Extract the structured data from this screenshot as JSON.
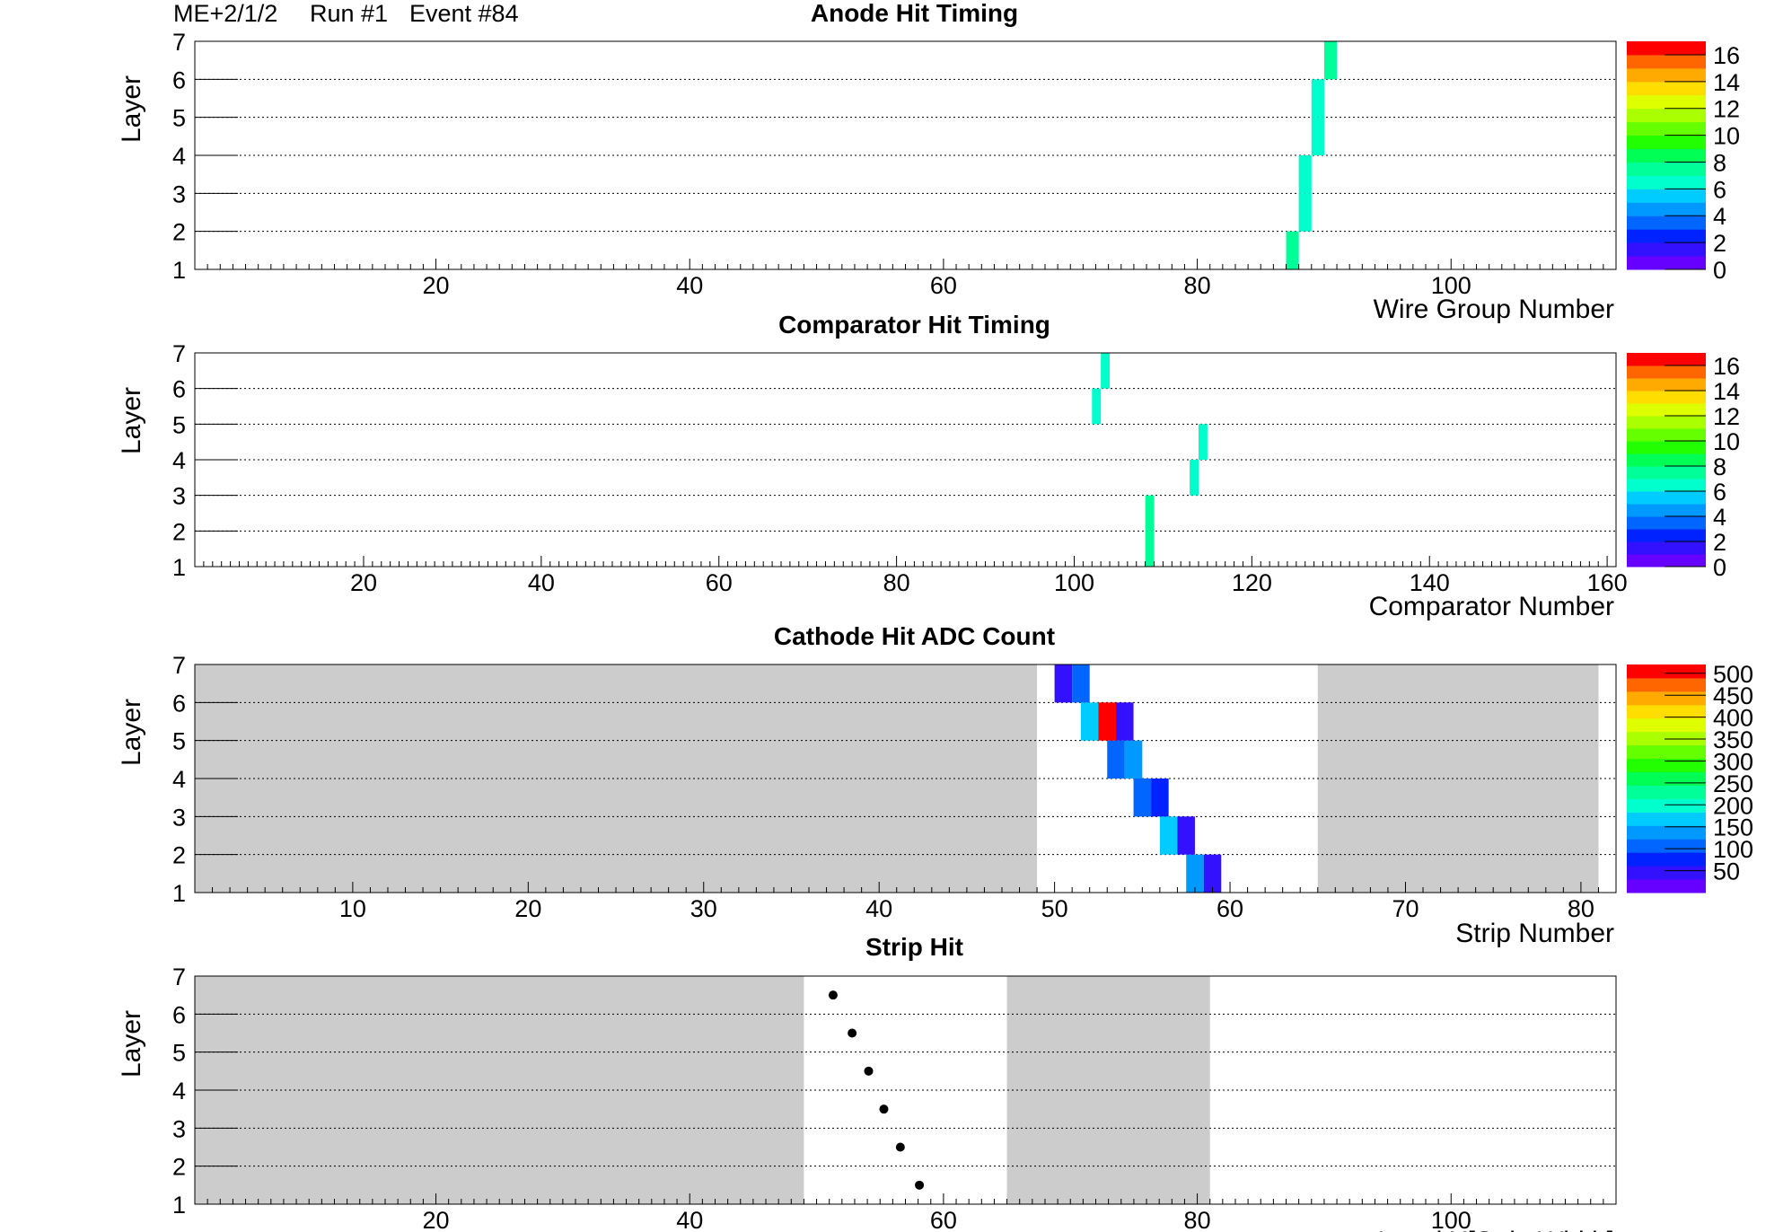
{
  "header": {
    "detector": "ME+2/1/2",
    "run": "Run #1",
    "event": "Event #84"
  },
  "colors": {
    "palette": [
      "#6600ff",
      "#3311ff",
      "#0022ff",
      "#0066ff",
      "#0099ff",
      "#00ccff",
      "#00ffcc",
      "#00ff99",
      "#00ff55",
      "#22ff00",
      "#66ff00",
      "#aaff00",
      "#ddff00",
      "#ffdd00",
      "#ffaa00",
      "#ff6600",
      "#ff0000"
    ],
    "inactive_region": "#cccccc",
    "grid": "#000000"
  },
  "chart_data": [
    {
      "type": "heatmap",
      "title": "Anode Hit Timing",
      "xlabel": "Wire Group Number",
      "ylabel": "Layer",
      "xlim": [
        1,
        113
      ],
      "ylim": [
        1,
        7
      ],
      "x_ticks": [
        20,
        40,
        60,
        80,
        100
      ],
      "y_ticks": [
        1,
        2,
        3,
        4,
        5,
        6,
        7
      ],
      "colorbar": {
        "min": 0,
        "max": 17,
        "ticks": [
          0,
          2,
          4,
          6,
          8,
          10,
          12,
          14,
          16
        ]
      },
      "cells": [
        {
          "layer": 1,
          "x0": 87,
          "x1": 88,
          "value": 7
        },
        {
          "layer": 2,
          "x0": 88,
          "x1": 89,
          "value": 6
        },
        {
          "layer": 3,
          "x0": 88,
          "x1": 89,
          "value": 6
        },
        {
          "layer": 4,
          "x0": 89,
          "x1": 90,
          "value": 6
        },
        {
          "layer": 5,
          "x0": 89,
          "x1": 90,
          "value": 6
        },
        {
          "layer": 6,
          "x0": 90,
          "x1": 91,
          "value": 7
        }
      ]
    },
    {
      "type": "heatmap",
      "title": "Comparator Hit Timing",
      "xlabel": "Comparator Number",
      "ylabel": "Layer",
      "xlim": [
        1,
        161
      ],
      "ylim": [
        1,
        7
      ],
      "x_ticks": [
        20,
        40,
        60,
        80,
        100,
        120,
        140,
        160
      ],
      "y_ticks": [
        1,
        2,
        3,
        4,
        5,
        6,
        7
      ],
      "colorbar": {
        "min": 0,
        "max": 17,
        "ticks": [
          0,
          2,
          4,
          6,
          8,
          10,
          12,
          14,
          16
        ]
      },
      "cells": [
        {
          "layer": 1,
          "x0": 108,
          "x1": 109,
          "value": 7
        },
        {
          "layer": 2,
          "x0": 108,
          "x1": 109,
          "value": 7
        },
        {
          "layer": 3,
          "x0": 113,
          "x1": 114,
          "value": 6
        },
        {
          "layer": 4,
          "x0": 114,
          "x1": 115,
          "value": 6
        },
        {
          "layer": 5,
          "x0": 102,
          "x1": 103,
          "value": 6
        },
        {
          "layer": 6,
          "x0": 103,
          "x1": 104,
          "value": 6
        }
      ]
    },
    {
      "type": "heatmap",
      "title": "Cathode Hit ADC Count",
      "xlabel": "Strip Number",
      "ylabel": "Layer",
      "xlim": [
        1,
        82
      ],
      "ylim": [
        1,
        7
      ],
      "x_ticks": [
        10,
        20,
        30,
        40,
        50,
        60,
        70,
        80
      ],
      "y_ticks": [
        1,
        2,
        3,
        4,
        5,
        6,
        7
      ],
      "inactive_ranges": [
        [
          1,
          49
        ],
        [
          65,
          81
        ]
      ],
      "colorbar": {
        "min": 0,
        "max": 520,
        "ticks": [
          50,
          100,
          150,
          200,
          250,
          300,
          350,
          400,
          450,
          500
        ]
      },
      "cells": [
        {
          "layer": 1,
          "x0": 57.5,
          "x1": 58.5,
          "value": 140
        },
        {
          "layer": 1,
          "x0": 58.5,
          "x1": 59.5,
          "value": 40
        },
        {
          "layer": 2,
          "x0": 56,
          "x1": 57,
          "value": 160
        },
        {
          "layer": 2,
          "x0": 57,
          "x1": 58,
          "value": 60
        },
        {
          "layer": 3,
          "x0": 54.5,
          "x1": 55.5,
          "value": 100
        },
        {
          "layer": 3,
          "x0": 55.5,
          "x1": 56.5,
          "value": 70
        },
        {
          "layer": 4,
          "x0": 53,
          "x1": 54,
          "value": 100
        },
        {
          "layer": 4,
          "x0": 54,
          "x1": 55,
          "value": 130
        },
        {
          "layer": 5,
          "x0": 51.5,
          "x1": 52.5,
          "value": 170
        },
        {
          "layer": 5,
          "x0": 52.5,
          "x1": 53.5,
          "value": 510
        },
        {
          "layer": 5,
          "x0": 53.5,
          "x1": 54.5,
          "value": 40
        },
        {
          "layer": 6,
          "x0": 50,
          "x1": 51,
          "value": 40
        },
        {
          "layer": 6,
          "x0": 51,
          "x1": 52,
          "value": 110
        }
      ]
    },
    {
      "type": "scatter",
      "title": "Strip Hit",
      "xlabel": "Local X[Strip Width]",
      "ylabel": "Layer",
      "xlim": [
        1,
        113
      ],
      "ylim": [
        1,
        7
      ],
      "x_ticks": [
        20,
        40,
        60,
        80,
        100
      ],
      "y_ticks": [
        1,
        2,
        3,
        4,
        5,
        6,
        7
      ],
      "inactive_ranges": [
        [
          1,
          49
        ],
        [
          65,
          81
        ]
      ],
      "points": [
        {
          "x": 58.1,
          "y": 1.5
        },
        {
          "x": 56.6,
          "y": 2.5
        },
        {
          "x": 55.3,
          "y": 3.5
        },
        {
          "x": 54.1,
          "y": 4.5
        },
        {
          "x": 52.8,
          "y": 5.5
        },
        {
          "x": 51.3,
          "y": 6.5
        }
      ]
    }
  ]
}
